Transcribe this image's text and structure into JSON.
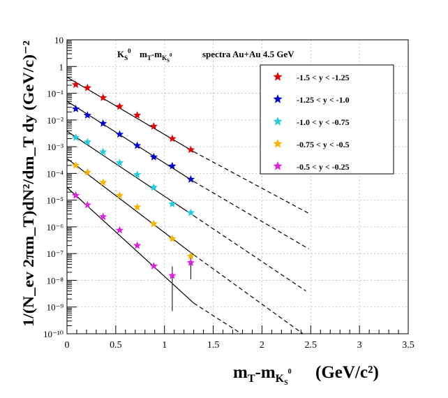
{
  "chart_data": {
    "type": "scatter",
    "title": "spectra Au+Au 4.5 GeV",
    "xlabel": "(GeV/c²)",
    "ylabel": "1/(N_ev 2πm_T)dN²/dm_T dy (GeV/c)⁻²",
    "xlim": [
      0,
      3.5
    ],
    "ylim": [
      1e-10,
      10
    ],
    "y_scale": "log",
    "grid": true,
    "legend_position": "top-right",
    "x_ticks": [
      "0",
      "0.5",
      "1",
      "1.5",
      "2",
      "2.5",
      "3",
      "3.5"
    ],
    "y_ticks": [
      "10",
      "1",
      "10⁻¹",
      "10⁻²",
      "10⁻³",
      "10⁻⁴",
      "10⁻⁵",
      "10⁻⁶",
      "10⁻⁷",
      "10⁻⁸",
      "10⁻⁹",
      "10⁻¹⁰"
    ],
    "series": [
      {
        "name": "-1.5 < y < -1.25",
        "color": "#e00000",
        "x": [
          0.09,
          0.21,
          0.37,
          0.54,
          0.72,
          0.89,
          1.08,
          1.27
        ],
        "y": [
          0.21,
          0.16,
          0.068,
          0.032,
          0.015,
          0.0058,
          0.002,
          0.00077
        ],
        "fit_solid": [
          [
            0.0,
            0.4
          ],
          [
            1.3,
            0.00065
          ]
        ],
        "fit_dashed": [
          [
            1.3,
            0.00065
          ],
          [
            2.48,
            3.2e-06
          ]
        ]
      },
      {
        "name": "-1.25 < y < -1.0",
        "color": "#0000d0",
        "x": [
          0.09,
          0.21,
          0.37,
          0.54,
          0.72,
          0.89,
          1.08,
          1.27
        ],
        "y": [
          0.026,
          0.015,
          0.0074,
          0.0029,
          0.0011,
          0.00041,
          0.00019,
          6e-05
        ],
        "fit_solid": [
          [
            0.0,
            0.05
          ],
          [
            1.3,
            5e-05
          ]
        ],
        "fit_dashed": [
          [
            1.3,
            5e-05
          ],
          [
            2.48,
            1.5e-07
          ]
        ]
      },
      {
        "name": "-1.0 < y < -0.75",
        "color": "#22ccdd",
        "x": [
          0.09,
          0.21,
          0.37,
          0.54,
          0.72,
          0.89,
          1.08,
          1.27
        ],
        "y": [
          0.0022,
          0.0015,
          0.00064,
          0.00025,
          9e-05,
          3e-05,
          7.2e-06,
          3.4e-06
        ],
        "fit_solid": [
          [
            0.0,
            0.0038
          ],
          [
            1.3,
            2.6e-06
          ]
        ],
        "fit_dashed": [
          [
            1.3,
            2.6e-06
          ],
          [
            2.45,
            4e-09
          ]
        ]
      },
      {
        "name": "-0.75 < y < -0.5",
        "color": "#f5b400",
        "x": [
          0.09,
          0.21,
          0.37,
          0.54,
          0.72,
          0.89,
          1.08,
          1.27
        ],
        "y": [
          0.0002,
          0.00011,
          4.6e-05,
          1.5e-05,
          5.5e-06,
          1.3e-06,
          3.6e-07,
          8e-08
        ],
        "fit_solid": [
          [
            0.0,
            0.00036
          ],
          [
            1.3,
            9e-08
          ]
        ],
        "fit_dashed": [
          [
            1.3,
            9e-08
          ],
          [
            2.42,
            1e-10
          ]
        ]
      },
      {
        "name": "-0.5 < y < -0.25",
        "color": "#dd22dd",
        "x": [
          0.09,
          0.21,
          0.37,
          0.54,
          0.72,
          0.89,
          1.08,
          1.27
        ],
        "y": [
          1.5e-05,
          6.6e-06,
          2.4e-06,
          7.5e-07,
          2e-07,
          3.4e-08,
          1.5e-08,
          4.6e-08
        ],
        "err_low": [
          null,
          null,
          null,
          null,
          null,
          null,
          7e-10,
          1.1e-08
        ],
        "err_high": [
          null,
          null,
          null,
          null,
          null,
          null,
          3.3e-08,
          8e-08
        ],
        "fit_solid": [
          [
            0.0,
            3e-05
          ],
          [
            1.3,
            1.4e-09
          ]
        ],
        "fit_dashed": [
          [
            1.3,
            1.4e-09
          ],
          [
            1.79,
            1e-10
          ]
        ]
      }
    ]
  }
}
